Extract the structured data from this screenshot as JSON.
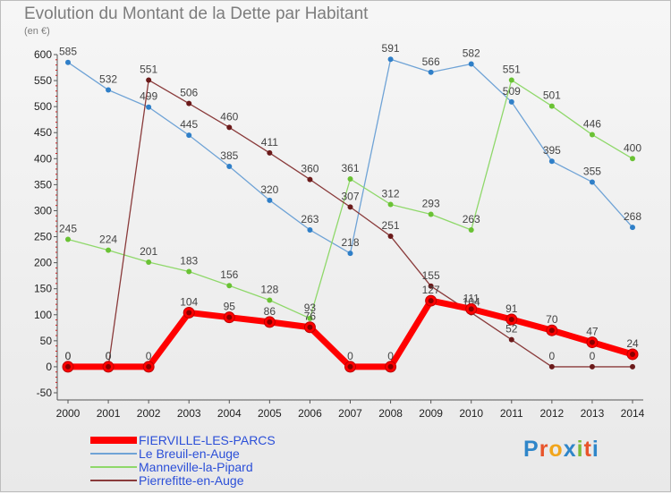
{
  "title": "Evolution du Montant de la Dette par Habitant",
  "subtitle": "(en €)",
  "logo": {
    "text": "Proxiti",
    "colors": [
      "#2f86c9",
      "#e8542a",
      "#f1a51c",
      "#2f86c9",
      "#7cbc3a",
      "#e8542a",
      "#2f86c9"
    ]
  },
  "chart_data": {
    "type": "line",
    "x": [
      "2000",
      "2001",
      "2002",
      "2003",
      "2004",
      "2005",
      "2006",
      "2007",
      "2008",
      "2009",
      "2010",
      "2011",
      "2012",
      "2013",
      "2014"
    ],
    "ylim": [
      -50,
      600
    ],
    "yticks": [
      -50,
      0,
      50,
      100,
      150,
      200,
      250,
      300,
      350,
      400,
      450,
      500,
      550,
      600
    ],
    "grid": false,
    "legend_position": "bottom-left",
    "series": [
      {
        "name": "FIERVILLE-LES-PARCS",
        "color": "#ff0000",
        "width": 7,
        "legend_text_color": "#2b4fd8",
        "values": [
          0,
          0,
          0,
          104,
          95,
          86,
          76,
          0,
          0,
          127,
          111,
          91,
          70,
          47,
          24
        ]
      },
      {
        "name": "Le Breuil-en-Auge",
        "color": "#6fa3d6",
        "point_color": "#2f7fc8",
        "width": 1.3,
        "legend_text_color": "#2b4fd8",
        "values": [
          585,
          532,
          499,
          445,
          385,
          320,
          263,
          218,
          591,
          566,
          582,
          509,
          395,
          355,
          268
        ]
      },
      {
        "name": "Manneville-la-Pipard",
        "color": "#8fd86a",
        "point_color": "#6ac234",
        "width": 1.3,
        "legend_text_color": "#2b4fd8",
        "values": [
          245,
          224,
          201,
          183,
          156,
          128,
          93,
          361,
          312,
          293,
          263,
          551,
          501,
          446,
          400
        ]
      },
      {
        "name": "Pierrefitte-en-Auge",
        "color": "#8a3b3b",
        "point_color": "#6b1a1a",
        "width": 1.3,
        "legend_text_color": "#2b4fd8",
        "values": [
          0,
          0,
          551,
          506,
          460,
          411,
          360,
          307,
          251,
          155,
          104,
          52,
          0,
          0,
          0
        ]
      }
    ]
  }
}
